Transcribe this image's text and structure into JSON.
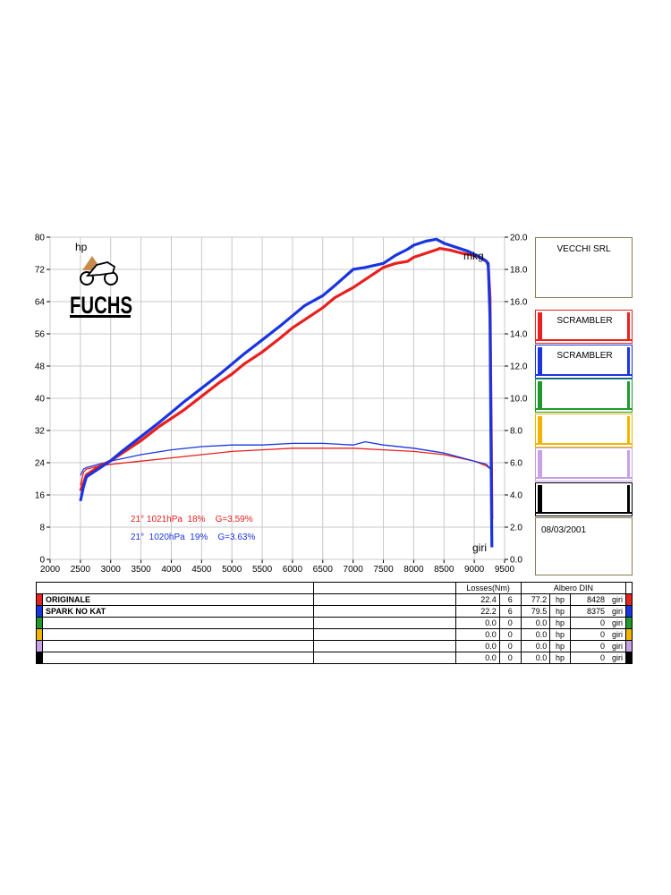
{
  "chart_data": {
    "type": "line",
    "xlim": [
      2000,
      9500
    ],
    "x_ticks": [
      "2000",
      "2500",
      "3000",
      "3500",
      "4000",
      "4500",
      "5000",
      "5500",
      "6000",
      "6500",
      "7000",
      "7500",
      "8000",
      "8500",
      "9000",
      "9500"
    ],
    "ylim_left": [
      0,
      80
    ],
    "y_ticks_left": [
      "0",
      "8",
      "16",
      "24",
      "32",
      "40",
      "48",
      "56",
      "64",
      "72",
      "80"
    ],
    "ylim_right": [
      0,
      20
    ],
    "y_ticks_right": [
      "0.0",
      "2.0",
      "4.0",
      "6.0",
      "8.0",
      "10.0",
      "12.0",
      "14.0",
      "16.0",
      "18.0",
      "20.0"
    ],
    "ylabel_left": "hp",
    "ylabel_right": "mkg",
    "xlabel": "giri",
    "grid": true,
    "power_series": [
      {
        "name": "ORIGINALE",
        "color": "#e8201e",
        "axis": "left",
        "x": [
          2500,
          2550,
          2600,
          2700,
          2800,
          3000,
          3200,
          3500,
          3800,
          4000,
          4200,
          4500,
          4800,
          5000,
          5200,
          5500,
          5800,
          6000,
          6200,
          6500,
          6700,
          7000,
          7200,
          7500,
          7700,
          7900,
          8000,
          8200,
          8400,
          8428,
          8600,
          8800,
          9000,
          9100,
          9200,
          9230,
          9260,
          9280,
          9290
        ],
        "y": [
          17,
          19,
          21,
          22,
          23,
          24.5,
          26.5,
          29.5,
          33,
          35,
          37,
          40.5,
          44,
          46,
          48.5,
          51.5,
          55,
          57.5,
          59.5,
          62.5,
          65,
          67.5,
          69.5,
          72.5,
          73.5,
          74,
          75,
          76,
          77,
          77.2,
          76.8,
          76,
          75.5,
          75,
          74,
          73,
          65,
          30,
          10
        ]
      },
      {
        "name": "SPARK NO KAT",
        "color": "#1a35e0",
        "axis": "left",
        "x": [
          2500,
          2550,
          2600,
          2700,
          2800,
          3000,
          3200,
          3500,
          3800,
          4000,
          4200,
          4500,
          4800,
          5000,
          5200,
          5500,
          5800,
          6000,
          6200,
          6500,
          6700,
          7000,
          7200,
          7500,
          7700,
          7900,
          8000,
          8200,
          8375,
          8500,
          8700,
          8900,
          9100,
          9200,
          9230,
          9260,
          9280,
          9290
        ],
        "y": [
          14.5,
          18,
          20.5,
          21.5,
          22.5,
          24.5,
          27,
          30.5,
          34,
          36.5,
          39,
          42.5,
          46,
          48.5,
          51,
          54.5,
          58,
          60.5,
          63,
          65.5,
          68,
          72,
          72.5,
          73.5,
          75.5,
          77,
          78,
          79,
          79.5,
          78.5,
          77.5,
          76.5,
          75,
          74,
          73.5,
          60,
          20,
          3
        ]
      }
    ],
    "torque_series": [
      {
        "name": "ORIGINALE",
        "color": "#e8201e",
        "axis": "right",
        "x": [
          2500,
          2550,
          2600,
          2800,
          3000,
          3500,
          4000,
          4500,
          5000,
          5500,
          6000,
          6500,
          7000,
          7500,
          8000,
          8500,
          9000,
          9200,
          9270
        ],
        "y": [
          4.6,
          5.4,
          5.6,
          5.8,
          5.9,
          6.1,
          6.3,
          6.5,
          6.7,
          6.8,
          6.9,
          6.9,
          6.9,
          6.8,
          6.7,
          6.5,
          6.1,
          5.8,
          5.6
        ]
      },
      {
        "name": "SPARK NO KAT",
        "color": "#1a35e0",
        "axis": "right",
        "x": [
          2500,
          2550,
          2600,
          2800,
          3000,
          3500,
          4000,
          4500,
          5000,
          5500,
          6000,
          6500,
          7000,
          7200,
          7500,
          8000,
          8500,
          9000,
          9200,
          9270
        ],
        "y": [
          5.2,
          5.6,
          5.7,
          5.9,
          6.1,
          6.5,
          6.8,
          7.0,
          7.1,
          7.1,
          7.2,
          7.2,
          7.1,
          7.3,
          7.1,
          6.9,
          6.6,
          6.1,
          5.9,
          5.6
        ]
      }
    ],
    "annotations": [
      {
        "text": "21° 1021hPa  18%    G=3,59%",
        "color": "#e8201e"
      },
      {
        "text": "21°  1020hPa  19%    G=3.63%",
        "color": "#1a35e0"
      }
    ]
  },
  "brand": {
    "logo_text": "FUCHS"
  },
  "side_panel": {
    "company": "VECCHI SRL",
    "runs": [
      {
        "label": "SCRAMBLER",
        "color": "#e8201e"
      },
      {
        "label": "SCRAMBLER",
        "color": "#1a35e0"
      },
      {
        "label": "",
        "color": "#1f9a2a"
      },
      {
        "label": "",
        "color": "#f0b400"
      },
      {
        "label": "",
        "color": "#c7a0e6"
      },
      {
        "label": "",
        "color": "#000000"
      }
    ],
    "date": "08/03/2001"
  },
  "table": {
    "losses_header": "Losses(Nm)",
    "din_header": "Albero DIN",
    "hp_unit": "hp",
    "rpm_unit": "giri",
    "rows": [
      {
        "color": "#e8201e",
        "name": "ORIGINALE",
        "loss": "22.4",
        "n": "6",
        "hp": "77.2",
        "rpm": "8428"
      },
      {
        "color": "#1a35e0",
        "name": "SPARK NO KAT",
        "loss": "22.2",
        "n": "6",
        "hp": "79.5",
        "rpm": "8375"
      },
      {
        "color": "#1f9a2a",
        "name": "",
        "loss": "0.0",
        "n": "0",
        "hp": "0.0",
        "rpm": "0"
      },
      {
        "color": "#f0b400",
        "name": "",
        "loss": "0.0",
        "n": "0",
        "hp": "0.0",
        "rpm": "0"
      },
      {
        "color": "#c7a0e6",
        "name": "",
        "loss": "0.0",
        "n": "0",
        "hp": "0.0",
        "rpm": "0"
      },
      {
        "color": "#000000",
        "name": "",
        "loss": "0.0",
        "n": "0",
        "hp": "0.0",
        "rpm": "0"
      }
    ]
  }
}
